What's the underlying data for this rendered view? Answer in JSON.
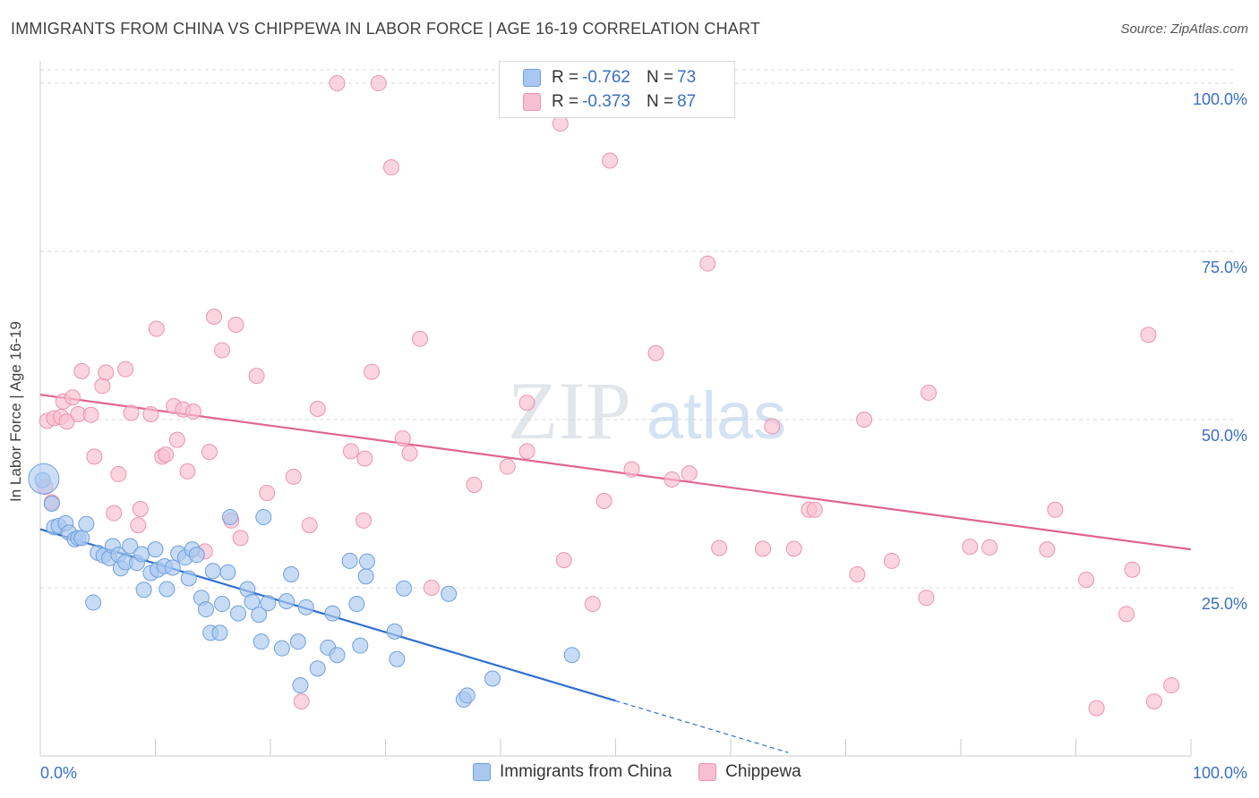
{
  "header": {
    "title": "IMMIGRANTS FROM CHINA VS CHIPPEWA IN LABOR FORCE | AGE 16-19 CORRELATION CHART",
    "source": "Source: ZipAtlas.com"
  },
  "legend": {
    "rows": [
      {
        "r_label": "R = ",
        "r_value": "-0.762",
        "n_label": "N = ",
        "n_value": "73"
      },
      {
        "r_label": "R = ",
        "r_value": "-0.373",
        "n_label": "N = ",
        "n_value": "87"
      }
    ]
  },
  "colors": {
    "blue_fill": "#a9c8f0",
    "blue_stroke": "#6f9fdc",
    "blue_line": "#2f6fd0",
    "pink_fill": "#f7bfd0",
    "pink_stroke": "#ec93b0",
    "pink_line": "#e0648e",
    "tick_label": "#3a6fc4",
    "grid": "#d9d9d9"
  },
  "chart_data": {
    "type": "scatter",
    "title": "IMMIGRANTS FROM CHINA VS CHIPPEWA IN LABOR FORCE | AGE 16-19 CORRELATION CHART",
    "xlabel": "",
    "ylabel": "In Labor Force | Age 16-19",
    "xlim": [
      0,
      100
    ],
    "ylim": [
      0,
      102
    ],
    "x_tick_labels": [
      "0.0%",
      "100.0%"
    ],
    "y_tick_labels": [
      "25.0%",
      "50.0%",
      "75.0%",
      "100.0%"
    ],
    "y_ticks": [
      25,
      50,
      75,
      100
    ],
    "grid": true,
    "legend_position": "top-center",
    "watermark": {
      "zip": "ZIP",
      "atlas": "atlas"
    },
    "series": [
      {
        "name": "Immigrants from China",
        "color": "#a9c8f0",
        "r": -0.762,
        "n": 73,
        "trend": {
          "x0": 0,
          "y0": 33.7,
          "x1": 50,
          "y1": 8.2,
          "dash_to_x": 65,
          "dash_to_y": 0.5
        },
        "points": [
          [
            0.2,
            41.0
          ],
          [
            1.0,
            37.5
          ],
          [
            1.2,
            34.0
          ],
          [
            1.6,
            34.2
          ],
          [
            2.2,
            34.6
          ],
          [
            2.5,
            33.2
          ],
          [
            3.0,
            32.2
          ],
          [
            3.3,
            32.4
          ],
          [
            3.6,
            32.4
          ],
          [
            4.0,
            34.5
          ],
          [
            4.6,
            22.8
          ],
          [
            5.0,
            30.2
          ],
          [
            5.5,
            29.8
          ],
          [
            6.0,
            29.4
          ],
          [
            6.3,
            31.2
          ],
          [
            6.8,
            29.9
          ],
          [
            7.0,
            27.9
          ],
          [
            7.4,
            28.8
          ],
          [
            7.8,
            31.2
          ],
          [
            8.4,
            28.7
          ],
          [
            8.8,
            30.0
          ],
          [
            9.0,
            24.7
          ],
          [
            9.6,
            27.2
          ],
          [
            10.0,
            30.7
          ],
          [
            10.2,
            27.7
          ],
          [
            10.8,
            28.2
          ],
          [
            11.0,
            24.8
          ],
          [
            11.5,
            28.0
          ],
          [
            12.0,
            30.1
          ],
          [
            12.6,
            29.5
          ],
          [
            12.9,
            26.4
          ],
          [
            13.2,
            30.7
          ],
          [
            13.6,
            29.9
          ],
          [
            14.0,
            23.5
          ],
          [
            14.4,
            21.8
          ],
          [
            14.8,
            18.3
          ],
          [
            15.0,
            27.5
          ],
          [
            15.6,
            18.3
          ],
          [
            15.8,
            22.6
          ],
          [
            16.3,
            27.3
          ],
          [
            16.5,
            35.5
          ],
          [
            17.2,
            21.2
          ],
          [
            18.0,
            24.8
          ],
          [
            18.4,
            22.9
          ],
          [
            19.0,
            21.0
          ],
          [
            19.2,
            17.0
          ],
          [
            19.4,
            35.5
          ],
          [
            19.8,
            22.7
          ],
          [
            21.0,
            16.0
          ],
          [
            21.4,
            23.0
          ],
          [
            21.8,
            27.0
          ],
          [
            22.4,
            17.0
          ],
          [
            22.6,
            10.5
          ],
          [
            23.1,
            22.1
          ],
          [
            24.1,
            13.0
          ],
          [
            25.0,
            16.1
          ],
          [
            25.4,
            21.2
          ],
          [
            25.8,
            15.0
          ],
          [
            26.9,
            29.0
          ],
          [
            27.5,
            22.6
          ],
          [
            27.8,
            16.4
          ],
          [
            28.3,
            26.7
          ],
          [
            28.4,
            28.9
          ],
          [
            30.8,
            18.5
          ],
          [
            31.0,
            14.4
          ],
          [
            31.6,
            24.9
          ],
          [
            35.5,
            24.1
          ],
          [
            36.8,
            8.4
          ],
          [
            37.1,
            9.0
          ],
          [
            39.3,
            11.5
          ],
          [
            46.2,
            15.0
          ]
        ],
        "big_points": [
          [
            0.3,
            41.2
          ]
        ]
      },
      {
        "name": "Chippewa",
        "color": "#f7bfd0",
        "r": -0.373,
        "n": 87,
        "trend": {
          "x0": 0,
          "y0": 53.7,
          "x1": 100,
          "y1": 30.7
        },
        "points": [
          [
            0.4,
            40.0
          ],
          [
            0.6,
            49.8
          ],
          [
            1.0,
            37.7
          ],
          [
            1.2,
            50.2
          ],
          [
            1.8,
            50.4
          ],
          [
            2.0,
            52.7
          ],
          [
            2.3,
            49.7
          ],
          [
            2.8,
            53.3
          ],
          [
            3.3,
            50.8
          ],
          [
            3.6,
            57.2
          ],
          [
            4.4,
            50.7
          ],
          [
            4.7,
            44.5
          ],
          [
            5.4,
            55.0
          ],
          [
            5.7,
            57.0
          ],
          [
            6.4,
            36.1
          ],
          [
            6.8,
            41.9
          ],
          [
            7.4,
            57.5
          ],
          [
            7.9,
            51.0
          ],
          [
            8.5,
            34.3
          ],
          [
            8.7,
            36.7
          ],
          [
            9.6,
            50.8
          ],
          [
            10.1,
            63.5
          ],
          [
            10.6,
            44.5
          ],
          [
            10.9,
            44.8
          ],
          [
            11.6,
            52.0
          ],
          [
            11.9,
            47.0
          ],
          [
            12.4,
            51.5
          ],
          [
            12.8,
            42.3
          ],
          [
            13.3,
            51.2
          ],
          [
            14.3,
            30.4
          ],
          [
            14.7,
            45.2
          ],
          [
            15.1,
            65.3
          ],
          [
            15.8,
            60.3
          ],
          [
            16.6,
            35.0
          ],
          [
            17.0,
            64.1
          ],
          [
            17.4,
            32.4
          ],
          [
            18.8,
            56.5
          ],
          [
            19.7,
            39.1
          ],
          [
            22.0,
            41.5
          ],
          [
            22.7,
            8.1
          ],
          [
            23.4,
            34.3
          ],
          [
            24.1,
            51.6
          ],
          [
            25.8,
            100.0
          ],
          [
            28.1,
            35.0
          ],
          [
            27.0,
            45.3
          ],
          [
            28.2,
            44.2
          ],
          [
            28.8,
            57.1
          ],
          [
            29.4,
            100.0
          ],
          [
            30.5,
            87.5
          ],
          [
            31.5,
            47.2
          ],
          [
            32.1,
            45.0
          ],
          [
            33.0,
            62.0
          ],
          [
            34.0,
            25.0
          ],
          [
            37.7,
            40.3
          ],
          [
            40.6,
            43.0
          ],
          [
            42.3,
            45.3
          ],
          [
            42.3,
            52.5
          ],
          [
            45.2,
            94.0
          ],
          [
            45.5,
            29.1
          ],
          [
            48.0,
            22.6
          ],
          [
            49.0,
            37.9
          ],
          [
            49.5,
            88.5
          ],
          [
            51.4,
            42.6
          ],
          [
            53.5,
            59.9
          ],
          [
            54.9,
            41.1
          ],
          [
            56.4,
            42.0
          ],
          [
            58.0,
            73.2
          ],
          [
            59.0,
            30.9
          ],
          [
            62.8,
            30.8
          ],
          [
            63.6,
            49.0
          ],
          [
            65.5,
            30.8
          ],
          [
            66.8,
            36.6
          ],
          [
            67.3,
            36.6
          ],
          [
            71.0,
            27.0
          ],
          [
            71.6,
            50.0
          ],
          [
            74.0,
            29.0
          ],
          [
            77.0,
            23.5
          ],
          [
            77.2,
            54.0
          ],
          [
            80.8,
            31.1
          ],
          [
            82.5,
            31.0
          ],
          [
            87.5,
            30.7
          ],
          [
            88.2,
            36.6
          ],
          [
            90.9,
            26.2
          ],
          [
            91.8,
            7.1
          ],
          [
            94.4,
            21.1
          ],
          [
            94.9,
            27.7
          ],
          [
            96.3,
            62.6
          ],
          [
            96.8,
            8.1
          ],
          [
            98.3,
            10.5
          ]
        ]
      }
    ]
  }
}
